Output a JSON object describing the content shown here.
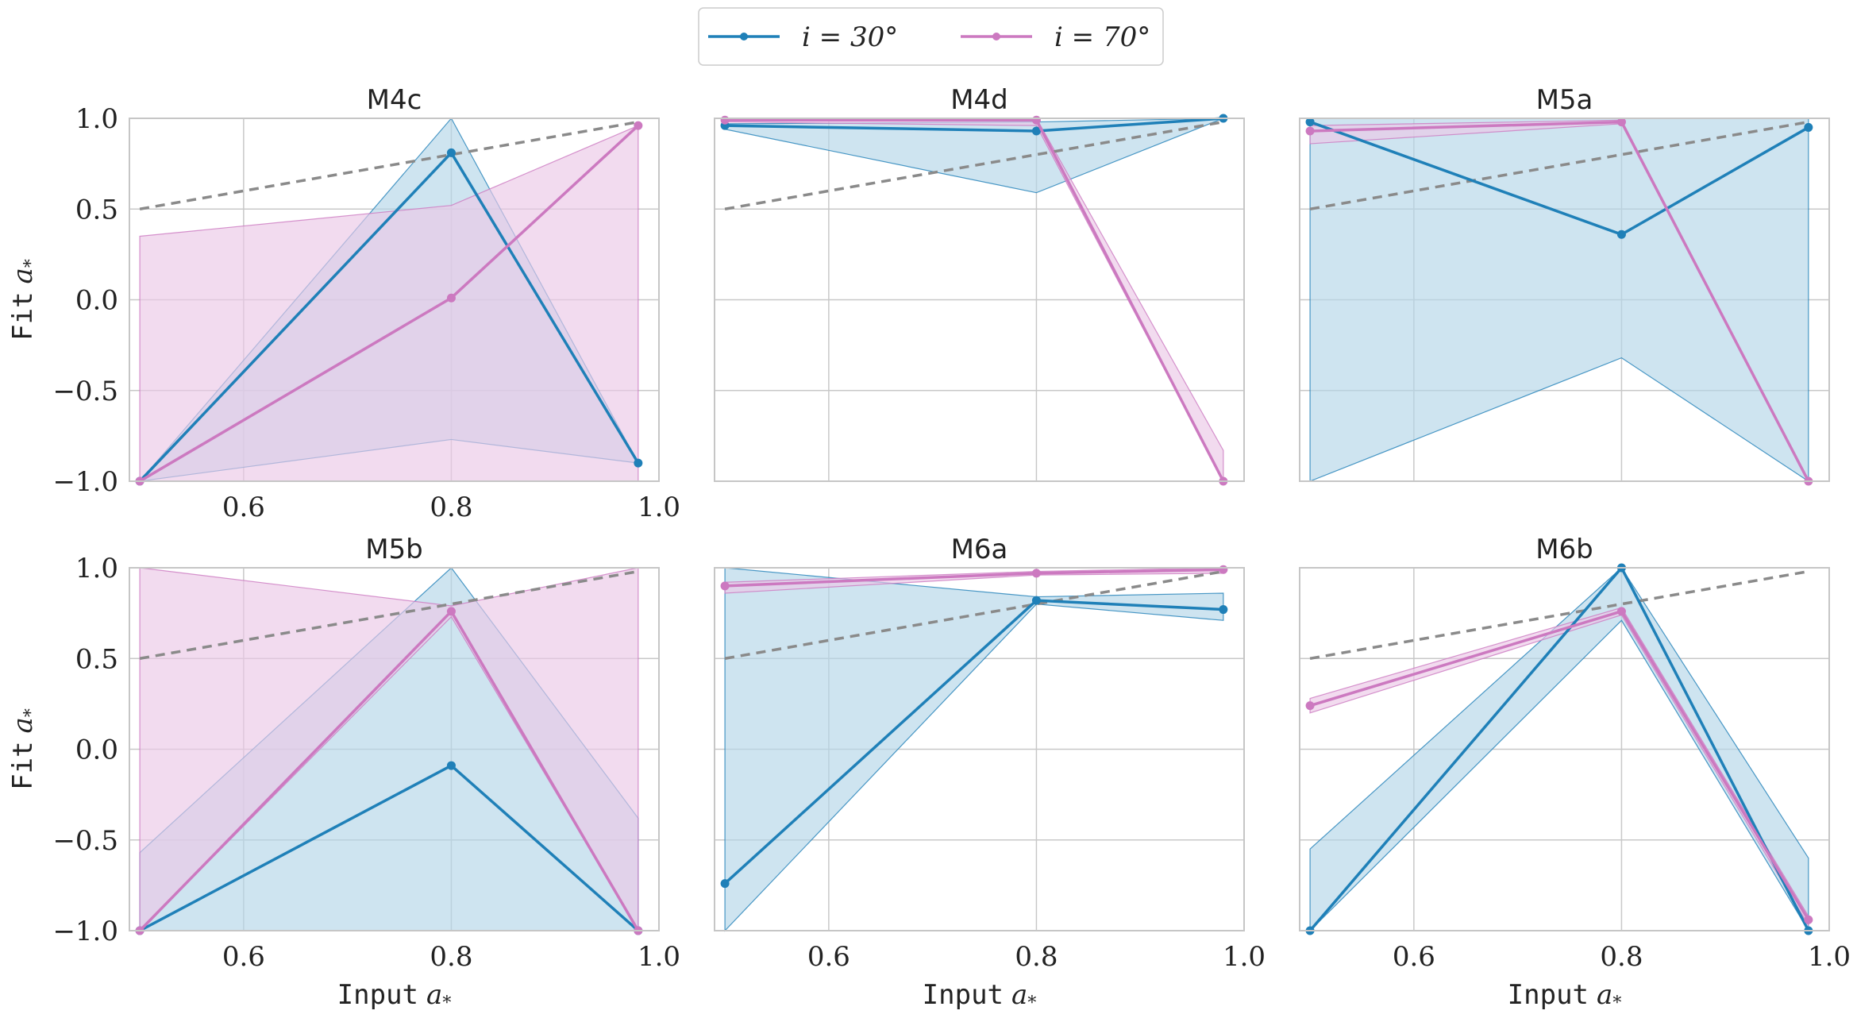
{
  "colors": {
    "blue": "#1f80b8",
    "pink": "#cc79c0",
    "blue_band": "#b3d5e8",
    "pink_band": "#ebc8e6",
    "dashed": "#8a8a8a",
    "grid": "#c8c8c8",
    "frame": "#c6c6c6"
  },
  "legend": {
    "entries": [
      {
        "label": "i = 30°",
        "color": "#1f80b8"
      },
      {
        "label": "i = 70°",
        "color": "#cc79c0"
      }
    ]
  },
  "axes_text": {
    "xlabel_prefix": "Input",
    "ylabel_prefix": "Fit",
    "var_symbol": "a",
    "var_subscript": "*"
  },
  "chart_data": [
    {
      "type": "line",
      "title": "M4c",
      "x": [
        0.5,
        0.8,
        0.98
      ],
      "xlim": [
        0.49,
        1.0
      ],
      "ylim": [
        -1.0,
        1.0
      ],
      "xticks": [
        "0.6",
        "0.8",
        "1.0"
      ],
      "yticks": [
        "1.0",
        "0.5",
        "0.0",
        "−0.5",
        "−1.0"
      ],
      "reference_line": {
        "x": [
          0.5,
          0.98
        ],
        "y": [
          0.5,
          0.98
        ]
      },
      "series": [
        {
          "name": "i = 30°",
          "values": [
            -1.0,
            0.81,
            -0.9
          ],
          "lower": [
            -1.0,
            -0.77,
            -0.9
          ],
          "upper": [
            -1.0,
            1.0,
            -0.9
          ]
        },
        {
          "name": "i = 70°",
          "values": [
            -1.0,
            0.01,
            0.96
          ],
          "lower": [
            -1.0,
            -1.0,
            -1.0
          ],
          "upper": [
            0.35,
            0.52,
            0.96
          ]
        }
      ]
    },
    {
      "type": "line",
      "title": "M4d",
      "x": [
        0.5,
        0.8,
        0.98
      ],
      "xlim": [
        0.49,
        1.0
      ],
      "ylim": [
        -1.0,
        1.0
      ],
      "xticks": [],
      "yticks": [],
      "reference_line": {
        "x": [
          0.5,
          0.98
        ],
        "y": [
          0.5,
          0.98
        ]
      },
      "series": [
        {
          "name": "i = 30°",
          "values": [
            0.96,
            0.93,
            1.0
          ],
          "lower": [
            0.94,
            0.59,
            1.0
          ],
          "upper": [
            0.97,
            0.98,
            1.0
          ]
        },
        {
          "name": "i = 70°",
          "values": [
            0.99,
            0.99,
            -1.0
          ],
          "lower": [
            0.98,
            0.96,
            -1.0
          ],
          "upper": [
            1.0,
            1.0,
            -0.83
          ]
        }
      ]
    },
    {
      "type": "line",
      "title": "M5a",
      "x": [
        0.5,
        0.8,
        0.98
      ],
      "xlim": [
        0.49,
        1.0
      ],
      "ylim": [
        -1.0,
        1.0
      ],
      "xticks": [],
      "yticks": [],
      "reference_line": {
        "x": [
          0.5,
          0.98
        ],
        "y": [
          0.5,
          0.98
        ]
      },
      "series": [
        {
          "name": "i = 30°",
          "values": [
            0.98,
            0.36,
            0.95
          ],
          "lower": [
            -1.0,
            -0.32,
            -1.0
          ],
          "upper": [
            1.0,
            1.0,
            1.0
          ]
        },
        {
          "name": "i = 70°",
          "values": [
            0.93,
            0.98,
            -1.0
          ],
          "lower": [
            0.86,
            0.97,
            -1.0
          ],
          "upper": [
            0.96,
            0.99,
            -1.0
          ]
        }
      ]
    },
    {
      "type": "line",
      "title": "M5b",
      "x": [
        0.5,
        0.8,
        0.98
      ],
      "xlim": [
        0.49,
        1.0
      ],
      "ylim": [
        -1.0,
        1.0
      ],
      "xticks": [
        "0.6",
        "0.8",
        "1.0"
      ],
      "yticks": [
        "1.0",
        "0.5",
        "0.0",
        "−0.5",
        "−1.0"
      ],
      "reference_line": {
        "x": [
          0.5,
          0.98
        ],
        "y": [
          0.5,
          0.98
        ]
      },
      "series": [
        {
          "name": "i = 30°",
          "values": [
            -1.0,
            -0.09,
            -1.0
          ],
          "lower": [
            -1.0,
            -1.0,
            -1.0
          ],
          "upper": [
            -0.57,
            1.0,
            -0.38
          ]
        },
        {
          "name": "i = 70°",
          "values": [
            -1.0,
            0.76,
            -1.0
          ],
          "lower": [
            -1.0,
            0.73,
            -1.0
          ],
          "upper": [
            1.0,
            0.79,
            1.0
          ]
        }
      ]
    },
    {
      "type": "line",
      "title": "M6a",
      "x": [
        0.5,
        0.8,
        0.98
      ],
      "xlim": [
        0.49,
        1.0
      ],
      "ylim": [
        -1.0,
        1.0
      ],
      "xticks": [
        "0.6",
        "0.8",
        "1.0"
      ],
      "yticks": [],
      "reference_line": {
        "x": [
          0.5,
          0.98
        ],
        "y": [
          0.5,
          0.98
        ]
      },
      "series": [
        {
          "name": "i = 30°",
          "values": [
            -0.74,
            0.82,
            0.77
          ],
          "lower": [
            -1.0,
            0.8,
            0.71
          ],
          "upper": [
            1.0,
            0.84,
            0.86
          ]
        },
        {
          "name": "i = 70°",
          "values": [
            0.9,
            0.97,
            0.99
          ],
          "lower": [
            0.86,
            0.96,
            0.97
          ],
          "upper": [
            0.92,
            0.98,
            1.0
          ]
        }
      ]
    },
    {
      "type": "line",
      "title": "M6b",
      "x": [
        0.5,
        0.8,
        0.98
      ],
      "xlim": [
        0.49,
        1.0
      ],
      "ylim": [
        -1.0,
        1.0
      ],
      "xticks": [
        "0.6",
        "0.8",
        "1.0"
      ],
      "yticks": [],
      "reference_line": {
        "x": [
          0.5,
          0.98
        ],
        "y": [
          0.5,
          0.98
        ]
      },
      "series": [
        {
          "name": "i = 30°",
          "values": [
            -1.0,
            1.0,
            -1.0
          ],
          "lower": [
            -1.0,
            0.71,
            -1.0
          ],
          "upper": [
            -0.55,
            1.0,
            -0.6
          ]
        },
        {
          "name": "i = 70°",
          "values": [
            0.24,
            0.76,
            -0.94
          ],
          "lower": [
            0.2,
            0.74,
            -0.97
          ],
          "upper": [
            0.28,
            0.78,
            -0.92
          ]
        }
      ]
    }
  ]
}
